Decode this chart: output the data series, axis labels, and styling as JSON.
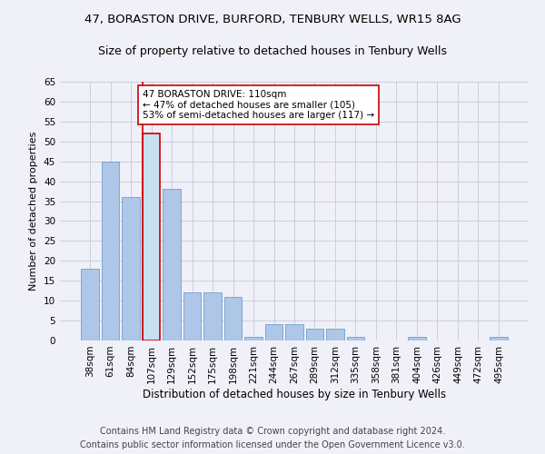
{
  "title1": "47, BORASTON DRIVE, BURFORD, TENBURY WELLS, WR15 8AG",
  "title2": "Size of property relative to detached houses in Tenbury Wells",
  "xlabel": "Distribution of detached houses by size in Tenbury Wells",
  "ylabel": "Number of detached properties",
  "categories": [
    "38sqm",
    "61sqm",
    "84sqm",
    "107sqm",
    "129sqm",
    "152sqm",
    "175sqm",
    "198sqm",
    "221sqm",
    "244sqm",
    "267sqm",
    "289sqm",
    "312sqm",
    "335sqm",
    "358sqm",
    "381sqm",
    "404sqm",
    "426sqm",
    "449sqm",
    "472sqm",
    "495sqm"
  ],
  "values": [
    18,
    45,
    36,
    52,
    38,
    12,
    12,
    11,
    1,
    4,
    4,
    3,
    3,
    1,
    0,
    0,
    1,
    0,
    0,
    0,
    1
  ],
  "bar_color": "#aec6e8",
  "bar_edge_color": "#5a96c8",
  "highlight_bar_index": 3,
  "highlight_bar_color": "#c8dff0",
  "highlight_bar_edge_color": "#cc0000",
  "ylim": [
    0,
    65
  ],
  "yticks": [
    0,
    5,
    10,
    15,
    20,
    25,
    30,
    35,
    40,
    45,
    50,
    55,
    60,
    65
  ],
  "annotation_text": "47 BORASTON DRIVE: 110sqm\n← 47% of detached houses are smaller (105)\n53% of semi-detached houses are larger (117) →",
  "annotation_box_color": "#ffffff",
  "annotation_box_edge": "#cc0000",
  "footer1": "Contains HM Land Registry data © Crown copyright and database right 2024.",
  "footer2": "Contains public sector information licensed under the Open Government Licence v3.0.",
  "bg_color": "#f0f0f8",
  "grid_color": "#c8c8d8",
  "title1_fontsize": 9.5,
  "title2_fontsize": 9,
  "xlabel_fontsize": 8.5,
  "ylabel_fontsize": 8,
  "tick_fontsize": 7.5,
  "annotation_fontsize": 7.5,
  "footer_fontsize": 7
}
